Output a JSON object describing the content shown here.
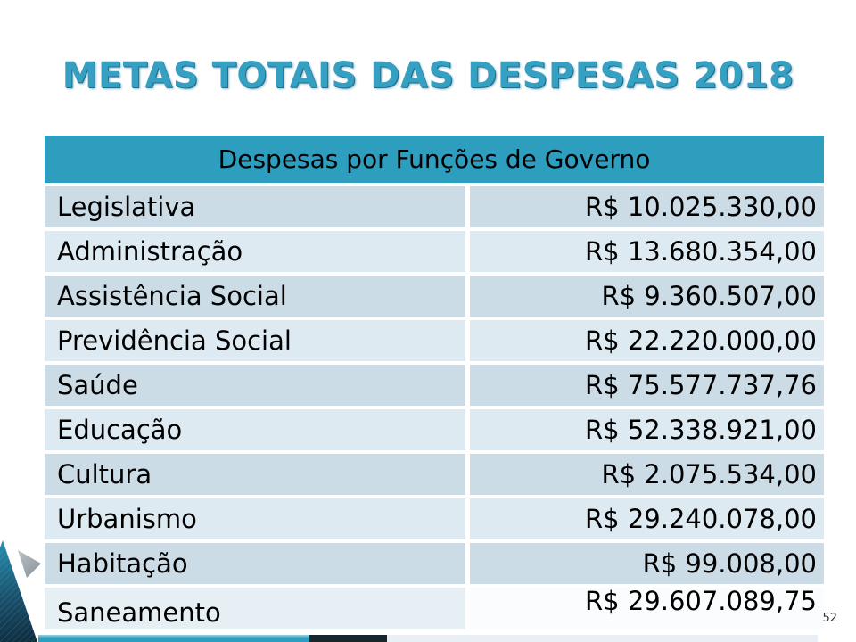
{
  "slide": {
    "title": "METAS TOTAIS DAS DESPESAS 2018",
    "page_number": "52"
  },
  "table": {
    "header": "Despesas por Funções de Governo",
    "rows": [
      {
        "label": "Legislativa",
        "value": "R$ 10.025.330,00"
      },
      {
        "label": "Administração",
        "value": "R$ 13.680.354,00"
      },
      {
        "label": "Assistência Social",
        "value": "R$ 9.360.507,00"
      },
      {
        "label": "Previdência Social",
        "value": "R$ 22.220.000,00"
      },
      {
        "label": "Saúde",
        "value": "R$ 75.577.737,76"
      },
      {
        "label": "Educação",
        "value": "R$ 52.338.921,00"
      },
      {
        "label": "Cultura",
        "value": "R$ 2.075.534,00"
      },
      {
        "label": "Urbanismo",
        "value": "R$ 29.240.078,00"
      },
      {
        "label": "Habitação",
        "value": "R$ 99.008,00"
      },
      {
        "label": "Saneamento",
        "value": "R$ 29.607.089,75"
      }
    ]
  },
  "colors": {
    "title_fill": "#35A0C2",
    "title_shadow": "#1E6E8E",
    "header_bg": "#2E9EBF",
    "row_dark": "#CBDCE6",
    "row_light": "#DEEAF1",
    "last_value_bg": "#FAFCFD",
    "strip_teal": "#2E9EBF",
    "strip_dark": "#18252C",
    "strip_light": "#E9EFF4"
  }
}
